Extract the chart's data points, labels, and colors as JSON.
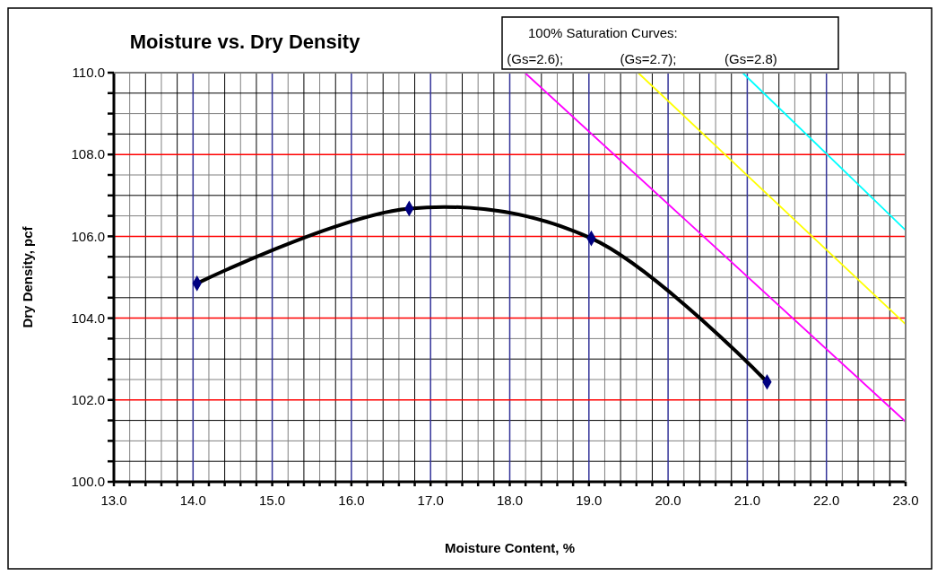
{
  "chart_data": {
    "type": "line",
    "title": "Moisture vs. Dry Density",
    "xlabel": "Moisture Content, %",
    "ylabel": "Dry Density, pcf",
    "legend_title": "100% Saturation Curves:",
    "legend": "top",
    "grid": true,
    "line_style": "solid",
    "xlim": [
      13,
      23
    ],
    "ylim": [
      100,
      110
    ],
    "xticks": [
      {
        "value": 13,
        "label": "13.0"
      },
      {
        "value": 14,
        "label": "14.0"
      },
      {
        "value": 15,
        "label": "15.0"
      },
      {
        "value": 16,
        "label": "16.0"
      },
      {
        "value": 17,
        "label": "17.0"
      },
      {
        "value": 18,
        "label": "18.0"
      },
      {
        "value": 19,
        "label": "19.0"
      },
      {
        "value": 20,
        "label": "20.0"
      },
      {
        "value": 21,
        "label": "21.0"
      },
      {
        "value": 22,
        "label": "22.0"
      },
      {
        "value": 23,
        "label": "23.0"
      }
    ],
    "yticks": [
      {
        "value": 100,
        "label": "100.0"
      },
      {
        "value": 102,
        "label": "102.0"
      },
      {
        "value": 104,
        "label": "104.0"
      },
      {
        "value": 106,
        "label": "106.0"
      },
      {
        "value": 108,
        "label": "108.0"
      },
      {
        "value": 110,
        "label": "110.0"
      }
    ],
    "series": [
      {
        "color": "#000000",
        "marker": "diamond",
        "x": [
          14.05,
          16.73,
          19.03,
          21.25
        ],
        "values": [
          104.85,
          106.68,
          105.95,
          102.44
        ]
      },
      {
        "name": "(Gs=2.6);",
        "color": "#ff00ff",
        "marker": "none",
        "x": [
          18.19,
          23
        ],
        "values": [
          110,
          101.47
        ]
      },
      {
        "name": "(Gs=2.7);",
        "color": "#ffff00",
        "marker": "none",
        "x": [
          19.62,
          23
        ],
        "values": [
          110,
          103.85
        ]
      },
      {
        "name": "(Gs=2.8)",
        "color": "#00ffff",
        "marker": "none",
        "x": [
          20.94,
          23
        ],
        "values": [
          110,
          106.15
        ]
      }
    ]
  }
}
